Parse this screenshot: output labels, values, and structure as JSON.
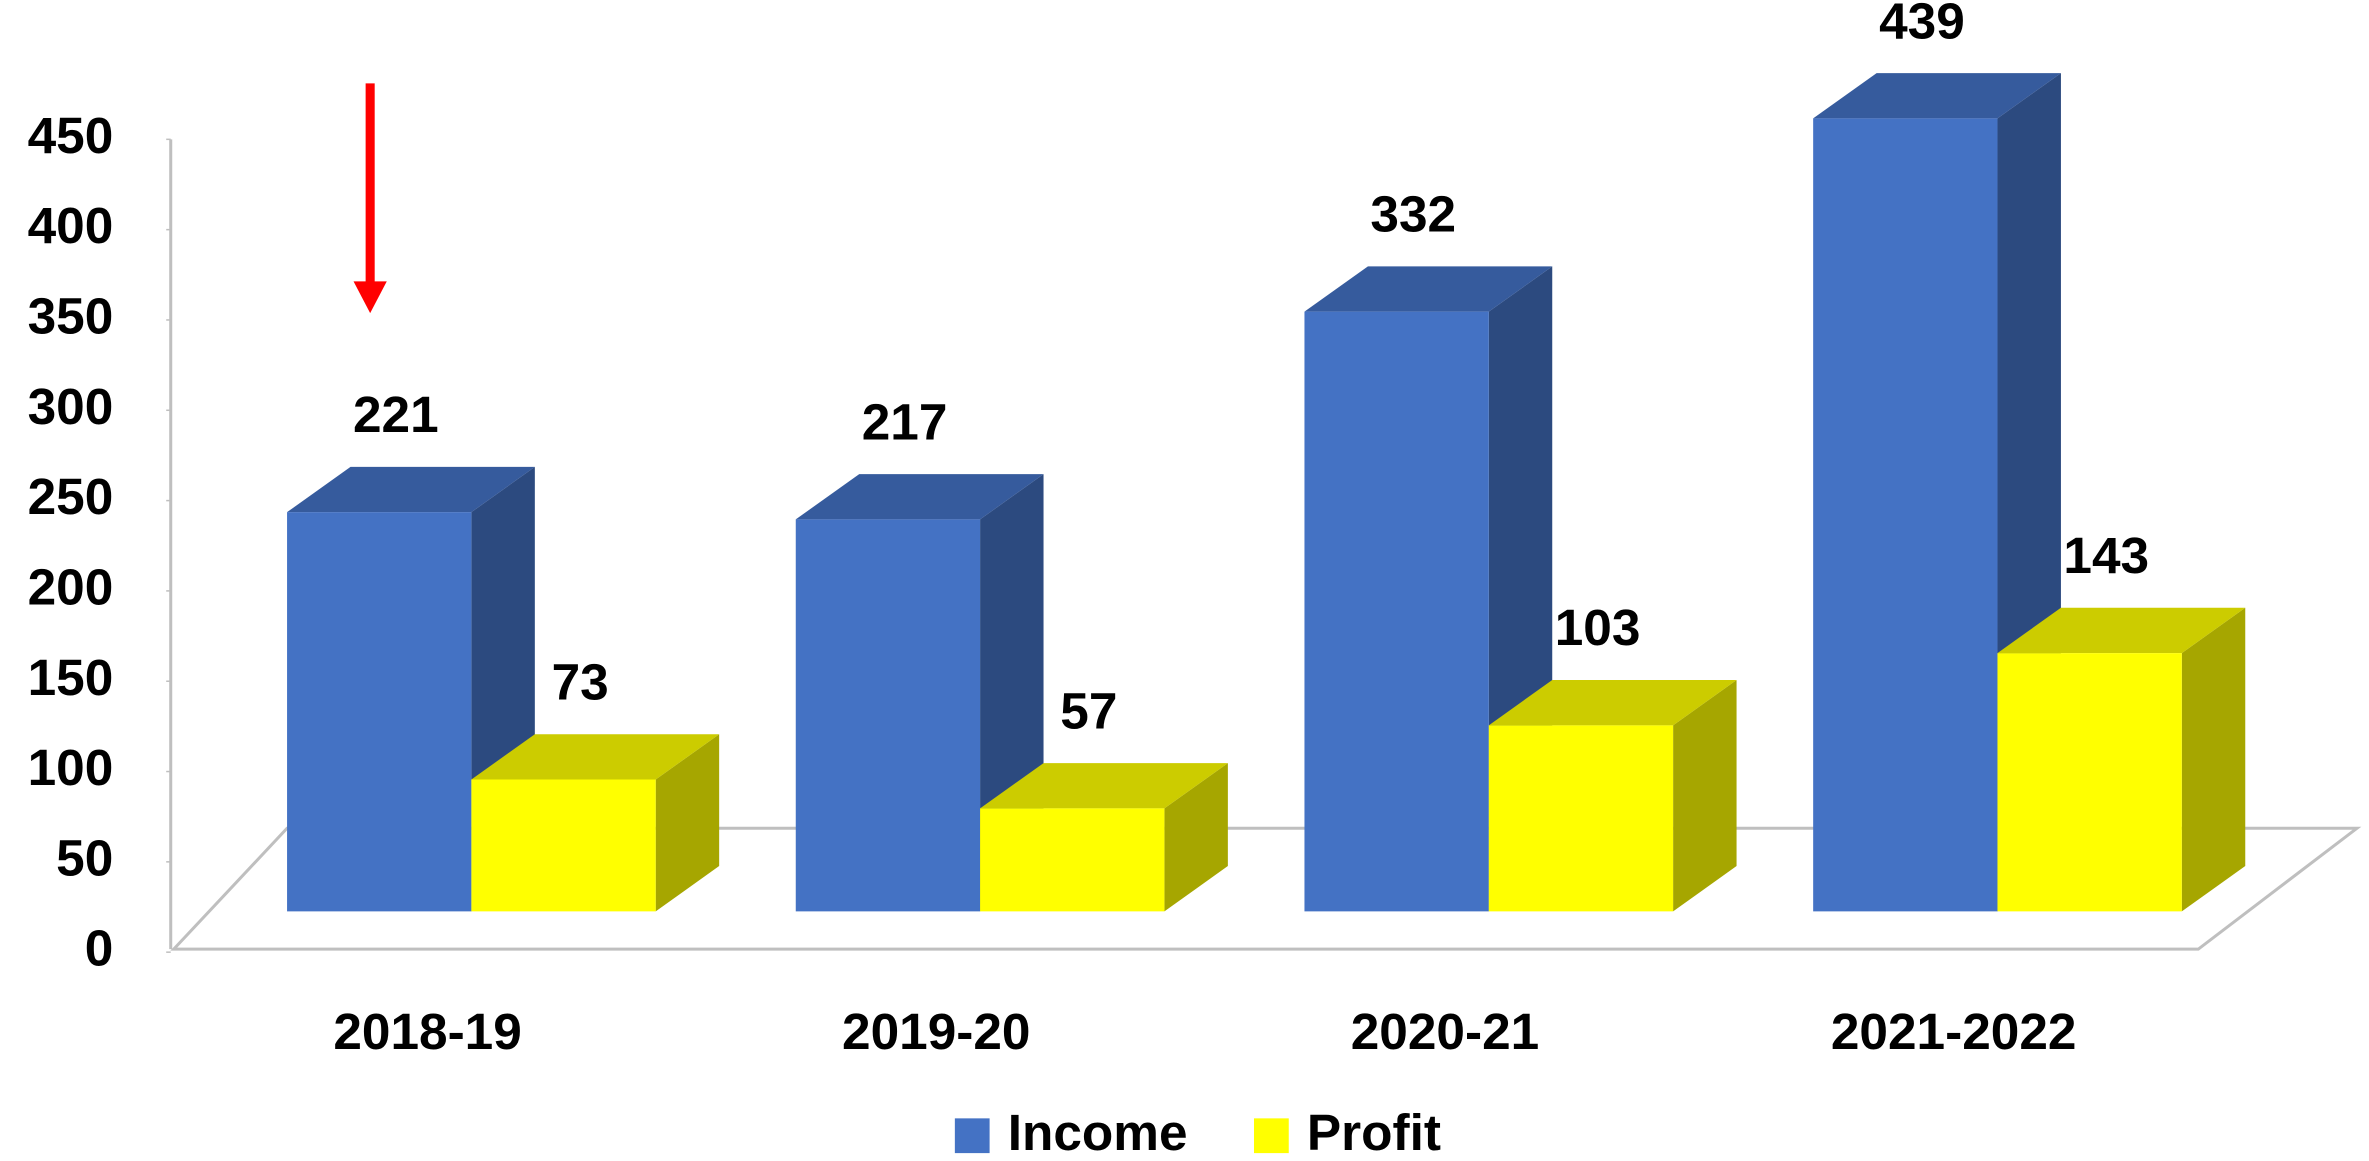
{
  "chart_data": {
    "type": "bar3d",
    "categories": [
      "2018-19",
      "2019-20",
      "2020-21",
      "2021-2022"
    ],
    "series": [
      {
        "name": "Income",
        "color": "#4472c4",
        "values": [
          221,
          217,
          332,
          439
        ]
      },
      {
        "name": "Profit",
        "color": "#ffff00",
        "values": [
          73,
          57,
          103,
          143
        ]
      }
    ],
    "ylim": [
      0,
      450
    ],
    "yticks": [
      0,
      50,
      100,
      150,
      200,
      250,
      300,
      350,
      400,
      450
    ],
    "legend": "bottom"
  }
}
